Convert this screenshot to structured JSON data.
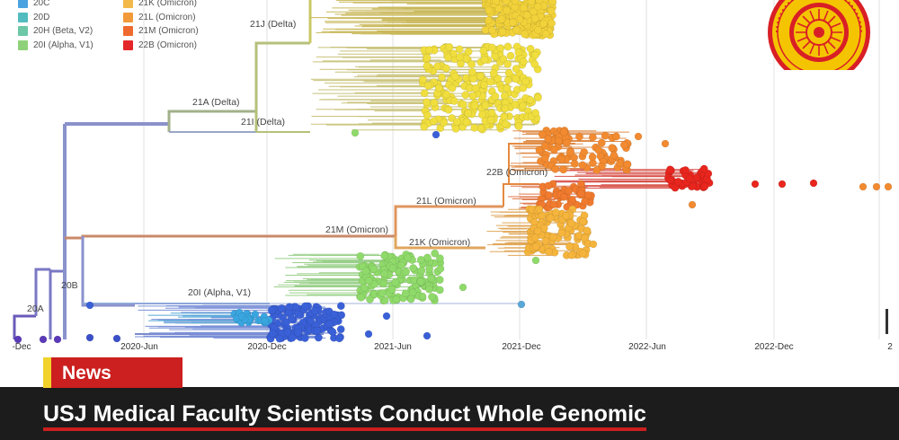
{
  "legend": {
    "left": [
      {
        "label": "20C",
        "color": "#4aa3e0"
      },
      {
        "label": "20D",
        "color": "#52bcc0"
      },
      {
        "label": "20H (Beta, V2)",
        "color": "#6cc8a6"
      },
      {
        "label": "20I (Alpha, V1)",
        "color": "#8fd17a"
      }
    ],
    "right": [
      {
        "label": "21K (Omicron)",
        "color": "#f2b84a"
      },
      {
        "label": "21L (Omicron)",
        "color": "#f29a3a"
      },
      {
        "label": "21M (Omicron)",
        "color": "#ef6a2f"
      },
      {
        "label": "22B (Omicron)",
        "color": "#e3262a"
      }
    ]
  },
  "clades": {
    "delta_21j": "21J (Delta)",
    "delta_21a": "21A (Delta)",
    "delta_21i": "21I (Delta)",
    "omicron_22b": "22B (Omicron)",
    "omicron_21l": "21L (Omicron)",
    "omicron_21m": "21M (Omicron)",
    "omicron_21k": "21K (Omicron)",
    "alpha_20i": "20I (Alpha, V1)",
    "clade_20b": "20B",
    "clade_20a": "20A"
  },
  "axis_ticks": [
    "-Dec",
    "2020-Jun",
    "2020-Dec",
    "2021-Jun",
    "2021-Dec",
    "2022-Jun",
    "2022-Dec",
    "2"
  ],
  "logo": {
    "alt": "University of Sri Jayewardenepura emblem",
    "colors": [
      "#e3262a",
      "#f5c400"
    ]
  },
  "news_label": "News",
  "headline": "USJ Medical Faculty Scientists Conduct Whole Genomic"
}
